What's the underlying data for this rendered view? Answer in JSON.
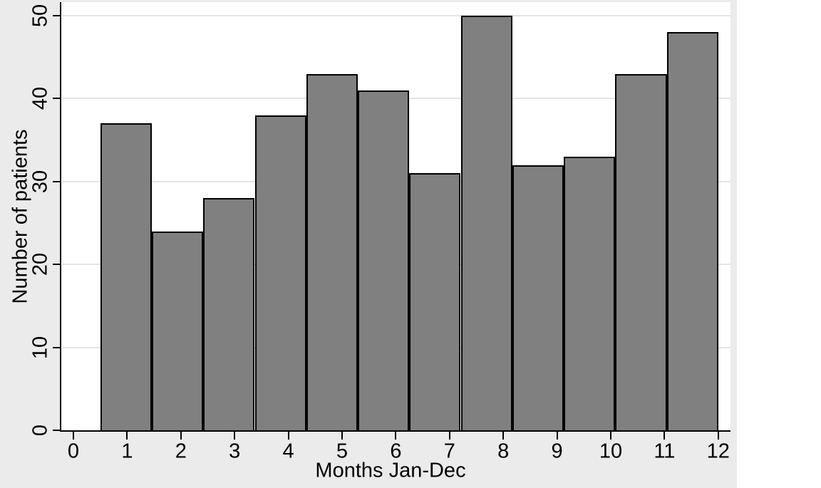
{
  "chart_data": {
    "type": "bar",
    "subtype": "histogram",
    "title": "",
    "xlabel": "Months Jan-Dec",
    "ylabel": "Number of patients",
    "categories": [
      1,
      2,
      3,
      4,
      5,
      6,
      7,
      8,
      9,
      10,
      11,
      12
    ],
    "values": [
      37,
      24,
      28,
      38,
      43,
      41,
      31,
      50,
      32,
      33,
      43,
      48
    ],
    "x_ticks": [
      0,
      1,
      2,
      3,
      4,
      5,
      6,
      7,
      8,
      9,
      10,
      11,
      12
    ],
    "y_ticks": [
      0,
      10,
      20,
      30,
      40,
      50
    ],
    "xlim": [
      -0.25,
      12.25
    ],
    "ylim": [
      0,
      51.6
    ],
    "bin_start": 0.5,
    "bin_width": 0.9583,
    "grid": "horizontal-only",
    "legend": "none",
    "colors": {
      "bar_fill": "#808080",
      "bar_border": "#000000",
      "figure_background": "#ebebeb",
      "plot_background": "#ffffff",
      "gridline": "#e4e4e4",
      "axis": "#000000",
      "text": "#000000",
      "page_background": "#ffffff"
    }
  }
}
